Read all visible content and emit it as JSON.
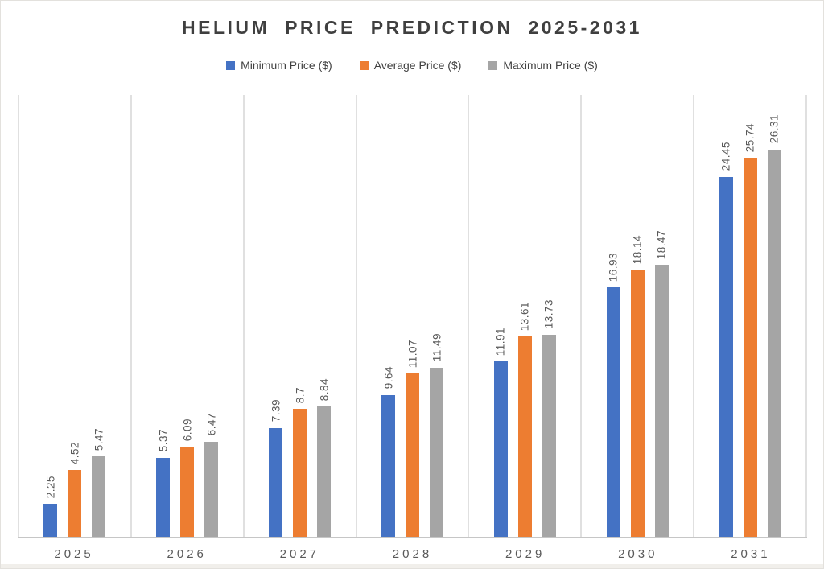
{
  "title": "HELIUM PRICE PREDICTION 2025-2031",
  "colors": {
    "title": "#3f3f3f",
    "text-muted": "#595959",
    "grid": "#e0e0e0",
    "axis": "#c6c6c6"
  },
  "chart_data": {
    "type": "bar",
    "title": "HELIUM PRICE PREDICTION 2025-2031",
    "categories": [
      "2025",
      "2026",
      "2027",
      "2028",
      "2029",
      "2030",
      "2031"
    ],
    "series": [
      {
        "name": "Minimum Price ($)",
        "color": "#4472C4",
        "values": [
          2.25,
          5.37,
          7.39,
          9.64,
          11.91,
          16.93,
          24.45
        ]
      },
      {
        "name": "Average Price ($)",
        "color": "#ED7D31",
        "values": [
          4.52,
          6.09,
          8.7,
          11.07,
          13.61,
          18.14,
          25.74
        ]
      },
      {
        "name": "Maximum Price ($)",
        "color": "#A5A5A5",
        "values": [
          5.47,
          6.47,
          8.84,
          11.49,
          13.73,
          18.47,
          26.31
        ]
      }
    ],
    "xlabel": "",
    "ylabel": "",
    "ylim": [
      0,
      30
    ],
    "grid": "vertical category boundaries",
    "legend_position": "top",
    "data_labels": "rotated 90 degrees above bars"
  }
}
